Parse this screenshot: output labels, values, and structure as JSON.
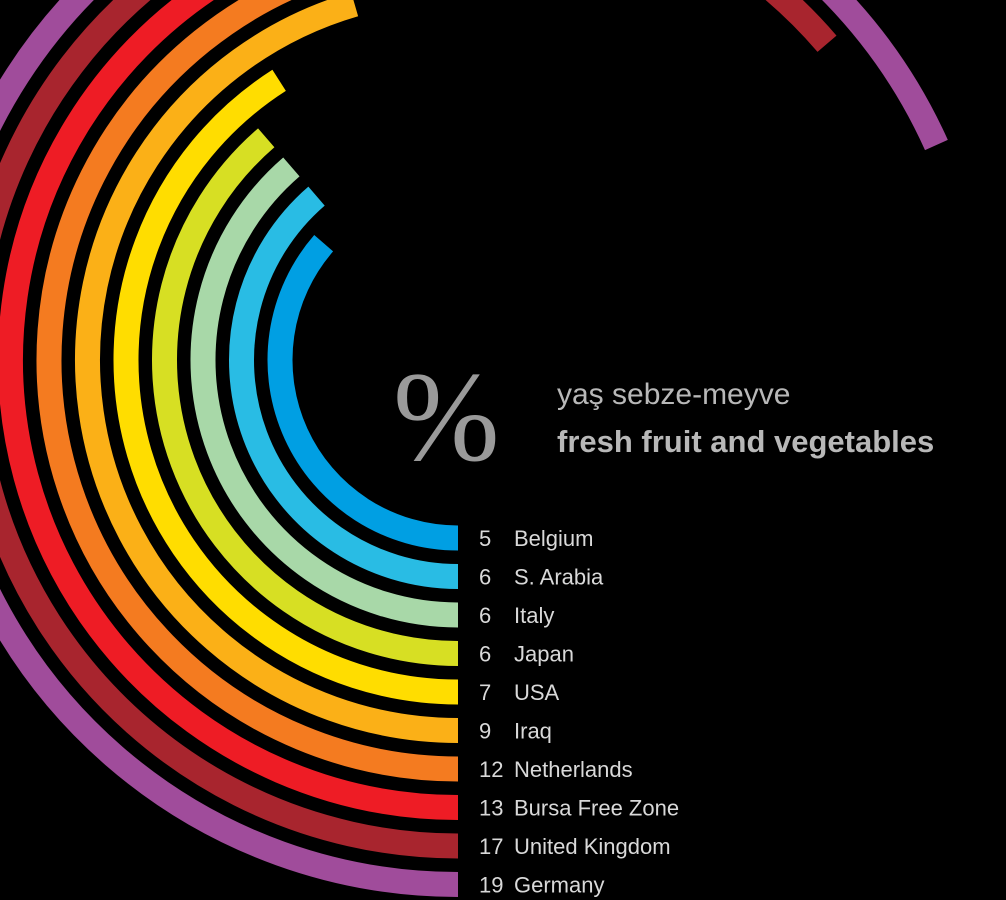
{
  "title": {
    "symbol": "%",
    "line1": "yaş sebze-meyve",
    "line2": "fresh fruit and vegetables"
  },
  "chart_data": {
    "type": "radial-bar",
    "unit": "%",
    "categories": [
      "Belgium",
      "S. Arabia",
      "Italy",
      "Japan",
      "USA",
      "Iraq",
      "Netherlands",
      "Bursa Free Zone",
      "United Kingdom",
      "Germany"
    ],
    "values": [
      5,
      6,
      6,
      6,
      7,
      9,
      12,
      13,
      17,
      19
    ],
    "colors": [
      "#009FE3",
      "#29BCE4",
      "#A8D8A8",
      "#D7DF23",
      "#FFDD00",
      "#FBB017",
      "#F47B20",
      "#EE1C25",
      "#A8252E",
      "#A04C9B"
    ]
  }
}
